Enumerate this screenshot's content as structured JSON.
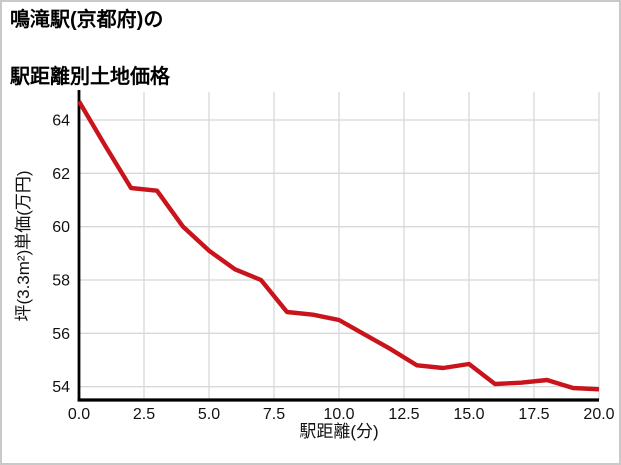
{
  "header": {
    "title_line1": "鳴滝駅(京都府)の",
    "title_line2": "駅距離別土地価格"
  },
  "chart_data": {
    "type": "line",
    "title": "鳴滝駅(京都府)の駅距離別土地価格",
    "xlabel": "駅距離(分)",
    "ylabel": "坪(3.3m²)単価(万円)",
    "x": [
      0,
      1,
      2,
      3,
      4,
      5,
      6,
      7,
      8,
      9,
      10,
      11,
      12,
      13,
      14,
      15,
      16,
      17,
      18,
      19,
      20
    ],
    "y": [
      64.7,
      63.05,
      61.45,
      61.35,
      60.0,
      59.1,
      58.4,
      58.0,
      56.8,
      56.7,
      56.5,
      55.95,
      55.4,
      54.8,
      54.7,
      54.85,
      54.1,
      54.15,
      54.25,
      53.95,
      53.9
    ],
    "xlim": [
      0,
      20
    ],
    "ylim": [
      53.5,
      65.05
    ],
    "xticks": [
      "0.0",
      "2.5",
      "5.0",
      "7.5",
      "10.0",
      "12.5",
      "15.0",
      "17.5",
      "20.0"
    ],
    "xtick_values": [
      0,
      2.5,
      5,
      7.5,
      10,
      12.5,
      15,
      17.5,
      20
    ],
    "yticks": [
      "54",
      "56",
      "58",
      "60",
      "62",
      "64"
    ],
    "ytick_values": [
      54,
      56,
      58,
      60,
      62,
      64
    ],
    "grid": true,
    "legend": "none",
    "line_color": "#c9141c",
    "grid_color": "#d8d8d8",
    "axis_color": "#000000",
    "tick_color": "#111111",
    "background": "#ffffff",
    "border_color": "#c9c9c9"
  }
}
